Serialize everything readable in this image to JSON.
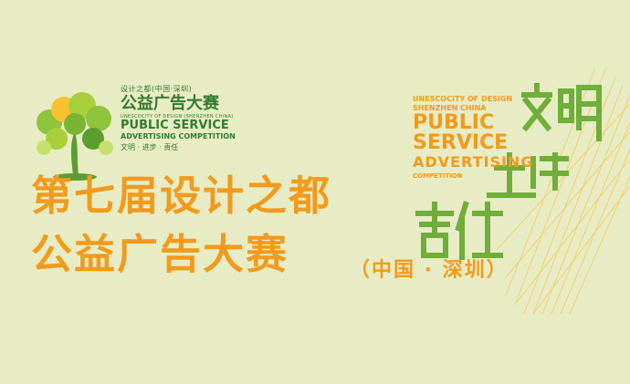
{
  "logo": {
    "sub": "设计之都(中国·深圳)",
    "cn_title": "公益广告大赛",
    "unesco": "UNESCOCITY OF DESIGN (SHENZHEN CHINA)",
    "en_line1": "PUBLIC SERVICE",
    "en_line2": "ADVERTISING COMPETITION",
    "motto": "文明 · 进步 · 责任"
  },
  "headline": {
    "line1": "第七届设计之都",
    "line2": "公益广告大赛",
    "suffix": "（中国 · 深圳）"
  },
  "artwork": {
    "unesco_line1": "UNESCOCITY OF DESIGN",
    "unesco_line2": "SHENZHEN CHINA",
    "en_line1": "PUBLIC",
    "en_line2": "SERVICE",
    "en_line3": "ADVERTISING",
    "en_line4": "COMPETITION"
  },
  "colors": {
    "background": "#e8ecc4",
    "orange": "#f39a1c",
    "green": "#2f7d31",
    "light_green": "#8cc43c"
  }
}
